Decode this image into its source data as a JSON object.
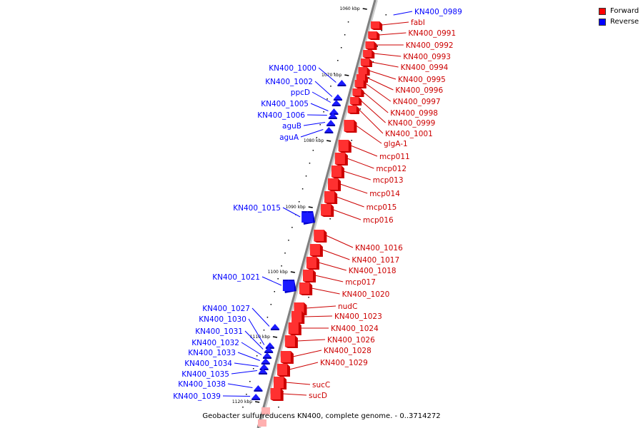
{
  "legend": {
    "forward_label": "Forward",
    "reverse_label": "Reverse",
    "forward_color": "#ff0000",
    "reverse_color": "#0000ff"
  },
  "caption": "Geobacter sulfurreducens KN400, complete genome. - 0..3714272",
  "scale_labels": [
    "1060 kbp",
    "1070 kbp",
    "1080 kbp",
    "1090 kbp",
    "1100 kbp",
    "1110 kbp",
    "1120 kbp"
  ],
  "forward_genes": [
    "KN400_0989",
    "fabI",
    "KN400_0991",
    "KN400_0992",
    "KN400_0993",
    "KN400_0994",
    "KN400_0995",
    "KN400_0996",
    "KN400_0997",
    "KN400_0998",
    "KN400_0999",
    "KN400_1001",
    "glgA-1",
    "mcp011",
    "mcp012",
    "mcp013",
    "mcp014",
    "mcp015",
    "mcp016",
    "KN400_1016",
    "KN400_1017",
    "KN400_1018",
    "mcp017",
    "KN400_1020",
    "nudC",
    "KN400_1023",
    "KN400_1024",
    "KN400_1026",
    "KN400_1028",
    "KN400_1029",
    "sucC",
    "sucD"
  ],
  "reverse_genes": [
    "KN400_1000",
    "KN400_1002",
    "ppcD",
    "KN400_1005",
    "KN400_1006",
    "aguB",
    "aguA",
    "KN400_1015",
    "KN400_1021",
    "KN400_1027",
    "KN400_1030",
    "KN400_1031",
    "KN400_1032",
    "KN400_1033",
    "KN400_1034",
    "KN400_1035",
    "KN400_1038",
    "KN400_1039"
  ]
}
